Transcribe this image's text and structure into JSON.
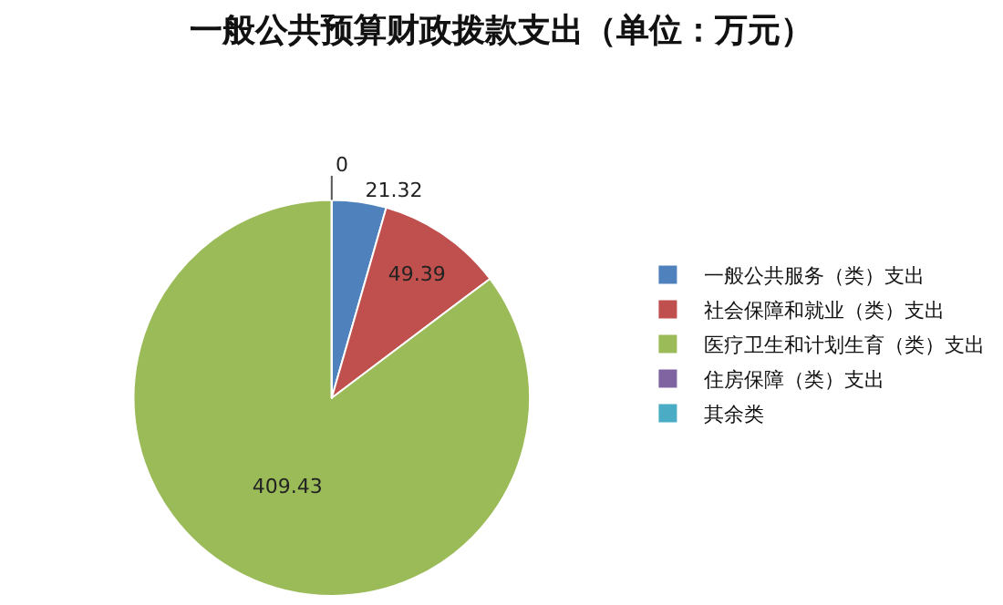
{
  "chart_data": {
    "type": "pie",
    "title": "一般公共预算财政拨款支出（单位：万元）",
    "categories": [
      "一般公共服务（类）支出",
      "社会保障和就业（类）支出",
      "医疗卫生和计划生育（类）支出",
      "住房保障（类）支出",
      "其余类"
    ],
    "values": [
      21.32,
      49.39,
      409.43,
      0,
      0
    ],
    "colors": [
      "#4f81bd",
      "#c0504d",
      "#9bbb59",
      "#8064a2",
      "#4bacc6"
    ],
    "value_labels": [
      "21.32",
      "49.39",
      "409.43",
      "0",
      null
    ],
    "legend": "right"
  }
}
